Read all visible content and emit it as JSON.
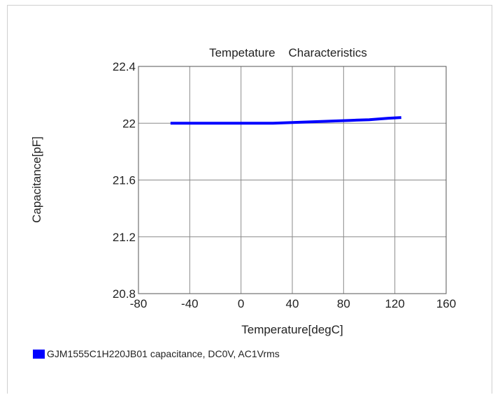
{
  "chart_data": {
    "type": "line",
    "title": "Tempetature    Characteristics",
    "xlabel": "Temperature[degC]",
    "ylabel": "Capacitance[pF]",
    "xlim": [
      -80,
      160
    ],
    "ylim": [
      20.8,
      22.4
    ],
    "x_ticks": [
      -80,
      -40,
      0,
      40,
      80,
      120,
      160
    ],
    "x_tick_labels": [
      "-80",
      "-40",
      "0",
      "40",
      "80",
      "120",
      "160"
    ],
    "y_ticks": [
      20.8,
      21.2,
      21.6,
      22,
      22.4
    ],
    "y_tick_labels": [
      "20.8",
      "21.2",
      "21.6",
      "22",
      "22.4"
    ],
    "grid": true,
    "legend_position": "bottom-left",
    "series": [
      {
        "name": "GJM1555C1H220JB01 capacitance, DC0V, AC1Vrms",
        "color": "#0000ff",
        "x": [
          -55,
          -40,
          -20,
          0,
          25,
          40,
          55,
          70,
          85,
          100,
          115,
          125
        ],
        "y": [
          22.0,
          22.0,
          22.0,
          22.0,
          22.0,
          22.005,
          22.01,
          22.015,
          22.02,
          22.025,
          22.035,
          22.04
        ]
      }
    ]
  }
}
